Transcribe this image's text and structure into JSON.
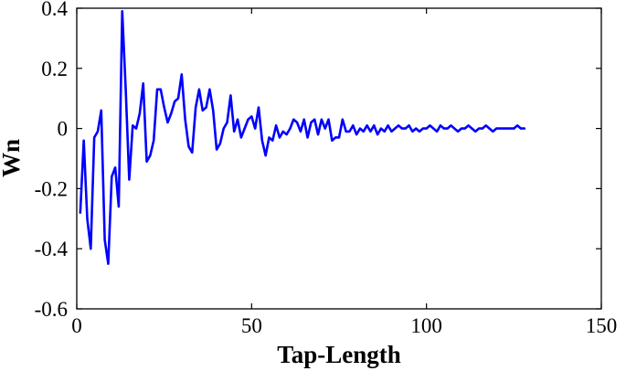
{
  "chart_data": {
    "type": "line",
    "title": "",
    "xlabel": "Tap-Length",
    "ylabel": "Wn",
    "xlim": [
      0,
      150
    ],
    "ylim": [
      -0.6,
      0.4
    ],
    "xticks": [
      "0",
      "50",
      "100",
      "150"
    ],
    "yticks": [
      "-0.6",
      "-0.4",
      "-0.2",
      "0",
      "0.2",
      "0.4"
    ],
    "grid": false,
    "line_color": "#0000ff",
    "series": [
      {
        "x": [
          1,
          2,
          3,
          4,
          5,
          6,
          7,
          8,
          9,
          10,
          11,
          12,
          13,
          14,
          15,
          16,
          17,
          18,
          19,
          20,
          21,
          22,
          23,
          24,
          25,
          26,
          27,
          28,
          29,
          30,
          31,
          32,
          33,
          34,
          35,
          36,
          37,
          38,
          39,
          40,
          41,
          42,
          43,
          44,
          45,
          46,
          47,
          48,
          49,
          50,
          51,
          52,
          53,
          54,
          55,
          56,
          57,
          58,
          59,
          60,
          61,
          62,
          63,
          64,
          65,
          66,
          67,
          68,
          69,
          70,
          71,
          72,
          73,
          74,
          75,
          76,
          77,
          78,
          79,
          80,
          81,
          82,
          83,
          84,
          85,
          86,
          87,
          88,
          89,
          90,
          91,
          92,
          93,
          94,
          95,
          96,
          97,
          98,
          99,
          100,
          101,
          102,
          103,
          104,
          105,
          106,
          107,
          108,
          109,
          110,
          111,
          112,
          113,
          114,
          115,
          116,
          117,
          118,
          119,
          120,
          121,
          122,
          123,
          124,
          125,
          126,
          127,
          128
        ],
        "values": [
          -0.28,
          -0.04,
          -0.3,
          -0.4,
          -0.03,
          -0.01,
          0.06,
          -0.37,
          -0.45,
          -0.16,
          -0.13,
          -0.26,
          0.39,
          0.13,
          -0.17,
          0.01,
          0.0,
          0.05,
          0.15,
          -0.11,
          -0.09,
          -0.04,
          0.13,
          0.13,
          0.07,
          0.02,
          0.05,
          0.09,
          0.1,
          0.18,
          0.03,
          -0.06,
          -0.08,
          0.07,
          0.13,
          0.06,
          0.07,
          0.13,
          0.06,
          -0.07,
          -0.05,
          0.0,
          0.02,
          0.11,
          -0.01,
          0.03,
          -0.03,
          0.0,
          0.03,
          0.04,
          0.0,
          0.07,
          -0.04,
          -0.09,
          -0.03,
          -0.04,
          0.01,
          -0.03,
          -0.01,
          -0.02,
          0.0,
          0.03,
          0.02,
          -0.01,
          0.03,
          -0.03,
          0.02,
          0.03,
          -0.02,
          0.03,
          0.0,
          0.03,
          -0.04,
          -0.03,
          -0.03,
          0.03,
          -0.01,
          -0.01,
          0.01,
          -0.02,
          0.0,
          -0.01,
          0.01,
          -0.01,
          0.01,
          -0.02,
          0.0,
          -0.01,
          0.01,
          -0.01,
          0.0,
          0.01,
          0.0,
          0.0,
          0.01,
          -0.01,
          0.0,
          -0.01,
          0.0,
          0.0,
          0.01,
          0.0,
          -0.01,
          0.01,
          0.0,
          0.0,
          0.01,
          0.0,
          -0.01,
          0.0,
          0.0,
          0.01,
          0.0,
          -0.01,
          0.0,
          0.0,
          0.01,
          0.0,
          -0.01,
          0.0,
          0.0,
          0.0,
          0.0,
          0.0,
          0.0,
          0.01,
          0.0,
          0.0
        ]
      }
    ]
  }
}
